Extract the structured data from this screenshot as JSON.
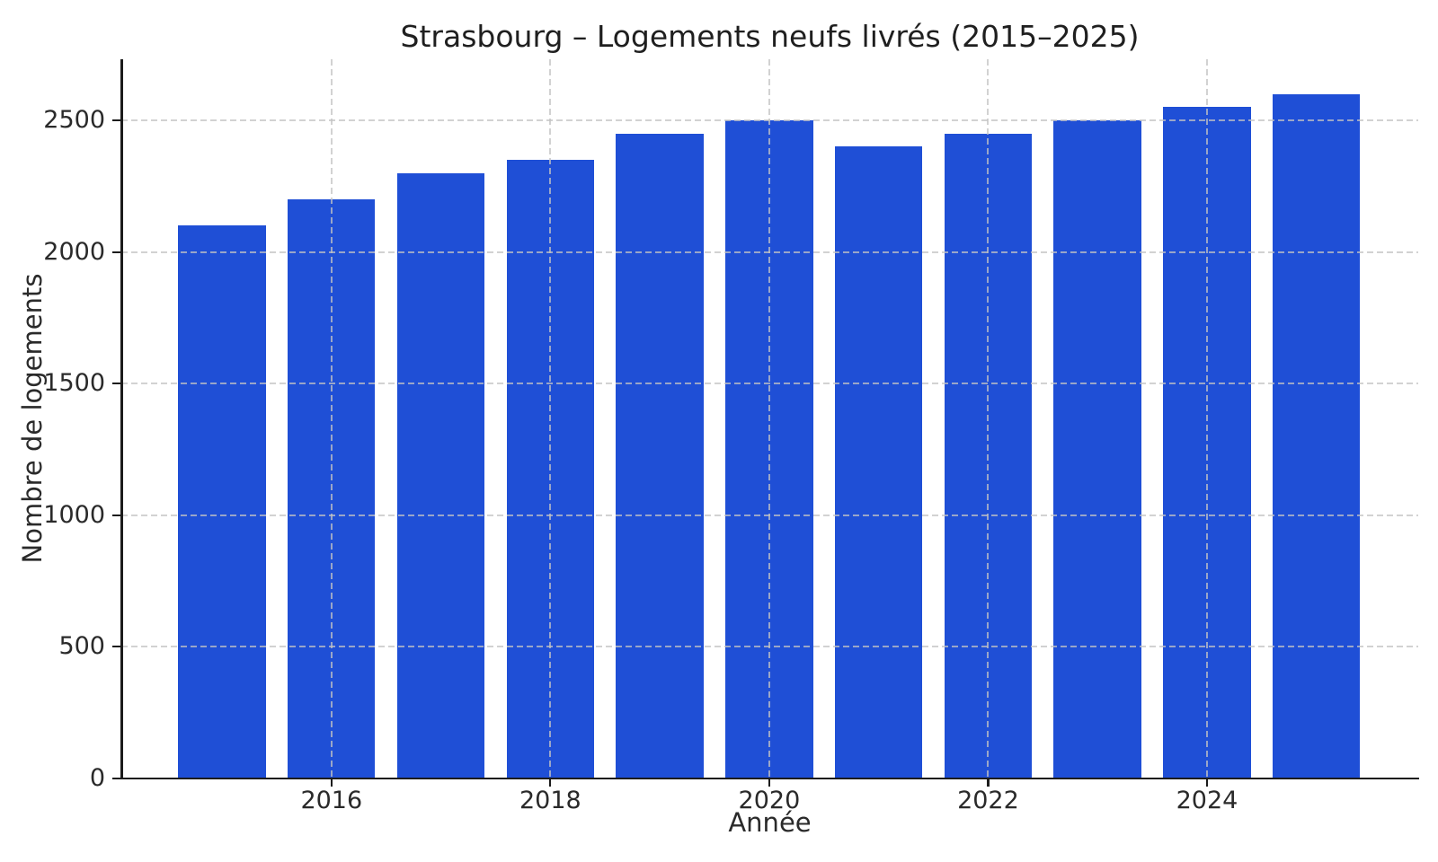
{
  "chart_data": {
    "type": "bar",
    "title": "Strasbourg – Logements neufs livrés (2015–2025)",
    "xlabel": "Année",
    "ylabel": "Nombre de logements",
    "categories": [
      2015,
      2016,
      2017,
      2018,
      2019,
      2020,
      2021,
      2022,
      2023,
      2024,
      2025
    ],
    "values": [
      2100,
      2200,
      2300,
      2350,
      2450,
      2500,
      2400,
      2450,
      2500,
      2550,
      2600
    ],
    "xticks": [
      2016,
      2018,
      2020,
      2022,
      2024
    ],
    "yticks": [
      0,
      500,
      1000,
      1500,
      2000,
      2500
    ],
    "xlim": [
      2014.08,
      2025.93
    ],
    "ylim": [
      0,
      2732
    ],
    "bar_width_fraction": 0.8,
    "bar_color": "#1f4fd6",
    "grid": "both, dashed, drawn over bars",
    "grid_color": "#cccccc",
    "axis_color": "#1c1c1c",
    "text_color": "#2a2a2a",
    "background": "#ffffff",
    "legend": "none"
  }
}
